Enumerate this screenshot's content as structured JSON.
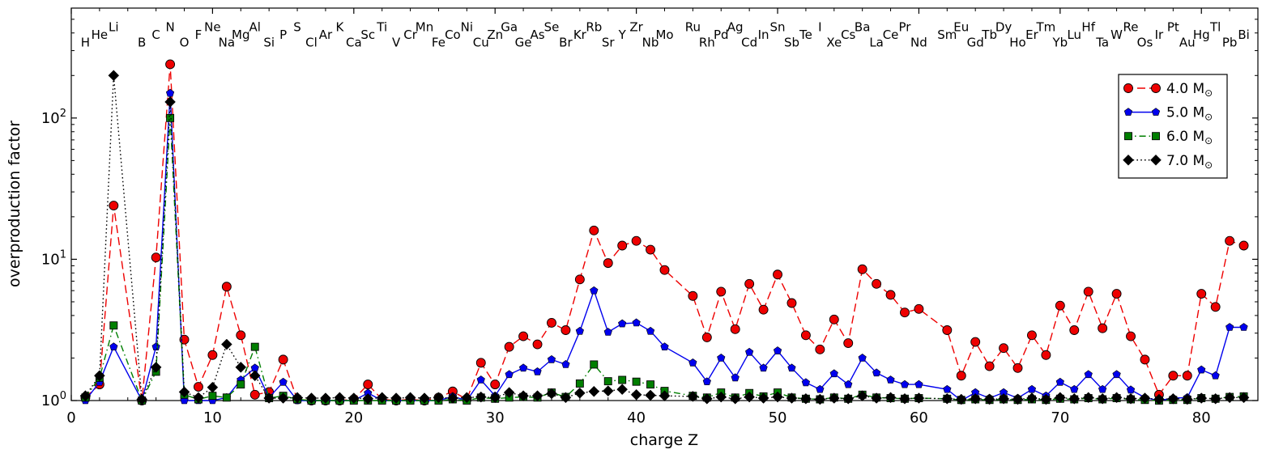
{
  "chart_data": {
    "type": "line",
    "title": "",
    "xlabel": "charge Z",
    "ylabel": "overproduction factor",
    "xscale": "linear",
    "yscale": "log",
    "xlim": [
      0,
      84
    ],
    "ylim": [
      1,
      600
    ],
    "xticks_major": [
      0,
      10,
      20,
      30,
      40,
      50,
      60,
      70,
      80
    ],
    "xtick_minor_step": 2,
    "ytick_exponents": [
      0,
      1,
      2
    ],
    "grid": false,
    "legend": {
      "position": "upper right",
      "entries": [
        "4.0 M⊙",
        "5.0 M⊙",
        "6.0 M⊙",
        "7.0 M⊙"
      ]
    },
    "elements": [
      {
        "symbol": "H",
        "Z": 1
      },
      {
        "symbol": "He",
        "Z": 2
      },
      {
        "symbol": "Li",
        "Z": 3
      },
      {
        "symbol": "B",
        "Z": 5
      },
      {
        "symbol": "C",
        "Z": 6
      },
      {
        "symbol": "N",
        "Z": 7
      },
      {
        "symbol": "O",
        "Z": 8
      },
      {
        "symbol": "F",
        "Z": 9
      },
      {
        "symbol": "Ne",
        "Z": 10
      },
      {
        "symbol": "Na",
        "Z": 11
      },
      {
        "symbol": "Mg",
        "Z": 12
      },
      {
        "symbol": "Al",
        "Z": 13
      },
      {
        "symbol": "Si",
        "Z": 14
      },
      {
        "symbol": "P",
        "Z": 15
      },
      {
        "symbol": "S",
        "Z": 16
      },
      {
        "symbol": "Cl",
        "Z": 17
      },
      {
        "symbol": "Ar",
        "Z": 18
      },
      {
        "symbol": "K",
        "Z": 19
      },
      {
        "symbol": "Ca",
        "Z": 20
      },
      {
        "symbol": "Sc",
        "Z": 21
      },
      {
        "symbol": "Ti",
        "Z": 22
      },
      {
        "symbol": "V",
        "Z": 23
      },
      {
        "symbol": "Cr",
        "Z": 24
      },
      {
        "symbol": "Mn",
        "Z": 25
      },
      {
        "symbol": "Fe",
        "Z": 26
      },
      {
        "symbol": "Co",
        "Z": 27
      },
      {
        "symbol": "Ni",
        "Z": 28
      },
      {
        "symbol": "Cu",
        "Z": 29
      },
      {
        "symbol": "Zn",
        "Z": 30
      },
      {
        "symbol": "Ga",
        "Z": 31
      },
      {
        "symbol": "Ge",
        "Z": 32
      },
      {
        "symbol": "As",
        "Z": 33
      },
      {
        "symbol": "Se",
        "Z": 34
      },
      {
        "symbol": "Br",
        "Z": 35
      },
      {
        "symbol": "Kr",
        "Z": 36
      },
      {
        "symbol": "Rb",
        "Z": 37
      },
      {
        "symbol": "Sr",
        "Z": 38
      },
      {
        "symbol": "Y",
        "Z": 39
      },
      {
        "symbol": "Zr",
        "Z": 40
      },
      {
        "symbol": "Nb",
        "Z": 41
      },
      {
        "symbol": "Mo",
        "Z": 42
      },
      {
        "symbol": "Ru",
        "Z": 44
      },
      {
        "symbol": "Rh",
        "Z": 45
      },
      {
        "symbol": "Pd",
        "Z": 46
      },
      {
        "symbol": "Ag",
        "Z": 47
      },
      {
        "symbol": "Cd",
        "Z": 48
      },
      {
        "symbol": "In",
        "Z": 49
      },
      {
        "symbol": "Sn",
        "Z": 50
      },
      {
        "symbol": "Sb",
        "Z": 51
      },
      {
        "symbol": "Te",
        "Z": 52
      },
      {
        "symbol": "I",
        "Z": 53
      },
      {
        "symbol": "Xe",
        "Z": 54
      },
      {
        "symbol": "Cs",
        "Z": 55
      },
      {
        "symbol": "Ba",
        "Z": 56
      },
      {
        "symbol": "La",
        "Z": 57
      },
      {
        "symbol": "Ce",
        "Z": 58
      },
      {
        "symbol": "Pr",
        "Z": 59
      },
      {
        "symbol": "Nd",
        "Z": 60
      },
      {
        "symbol": "Sm",
        "Z": 62
      },
      {
        "symbol": "Eu",
        "Z": 63
      },
      {
        "symbol": "Gd",
        "Z": 64
      },
      {
        "symbol": "Tb",
        "Z": 65
      },
      {
        "symbol": "Dy",
        "Z": 66
      },
      {
        "symbol": "Ho",
        "Z": 67
      },
      {
        "symbol": "Er",
        "Z": 68
      },
      {
        "symbol": "Tm",
        "Z": 69
      },
      {
        "symbol": "Yb",
        "Z": 70
      },
      {
        "symbol": "Lu",
        "Z": 71
      },
      {
        "symbol": "Hf",
        "Z": 72
      },
      {
        "symbol": "Ta",
        "Z": 73
      },
      {
        "symbol": "W",
        "Z": 74
      },
      {
        "symbol": "Re",
        "Z": 75
      },
      {
        "symbol": "Os",
        "Z": 76
      },
      {
        "symbol": "Ir",
        "Z": 77
      },
      {
        "symbol": "Pt",
        "Z": 78
      },
      {
        "symbol": "Au",
        "Z": 79
      },
      {
        "symbol": "Hg",
        "Z": 80
      },
      {
        "symbol": "Tl",
        "Z": 81
      },
      {
        "symbol": "Pb",
        "Z": 82
      },
      {
        "symbol": "Bi",
        "Z": 83
      }
    ],
    "series": [
      {
        "name": "4.0 M",
        "sub": "⊙",
        "color": "#ee0000",
        "line": "dashed",
        "marker": "circle",
        "values": [
          1.05,
          1.3,
          24,
          1.0,
          10.3,
          240,
          2.7,
          1.25,
          2.1,
          6.4,
          2.9,
          1.1,
          1.15,
          1.95,
          1.02,
          1.0,
          1.0,
          1.0,
          1.02,
          1.3,
          1.02,
          1.0,
          1.02,
          1.0,
          1.05,
          1.16,
          1.02,
          1.85,
          1.3,
          2.4,
          2.85,
          2.5,
          3.55,
          3.15,
          7.2,
          16.0,
          9.4,
          12.5,
          13.5,
          11.7,
          8.4,
          5.5,
          2.8,
          5.9,
          3.2,
          6.7,
          4.4,
          7.8,
          4.9,
          2.9,
          2.3,
          3.75,
          2.55,
          8.5,
          6.7,
          5.6,
          4.2,
          4.45,
          3.15,
          1.5,
          2.6,
          1.75,
          2.35,
          1.7,
          2.9,
          2.1,
          4.7,
          3.15,
          5.9,
          3.25,
          5.7,
          2.85,
          1.95,
          1.1,
          1.5,
          1.5,
          5.7,
          4.6,
          13.5,
          12.5
        ]
      },
      {
        "name": "5.0 M",
        "sub": "⊙",
        "color": "#0000ee",
        "line": "solid",
        "marker": "pentagon",
        "values": [
          1.0,
          1.35,
          2.4,
          1.0,
          2.4,
          150,
          1.0,
          1.0,
          1.0,
          1.05,
          1.4,
          1.7,
          1.05,
          1.35,
          1.0,
          1.0,
          1.0,
          1.0,
          1.0,
          1.13,
          1.0,
          1.0,
          1.0,
          1.0,
          1.0,
          1.07,
          1.0,
          1.4,
          1.08,
          1.53,
          1.7,
          1.6,
          1.95,
          1.8,
          3.1,
          6.0,
          3.05,
          3.5,
          3.55,
          3.1,
          2.4,
          1.85,
          1.36,
          2.0,
          1.45,
          2.2,
          1.7,
          2.25,
          1.7,
          1.34,
          1.2,
          1.55,
          1.3,
          2.0,
          1.57,
          1.4,
          1.3,
          1.3,
          1.2,
          1.0,
          1.14,
          1.04,
          1.14,
          1.04,
          1.2,
          1.08,
          1.35,
          1.2,
          1.53,
          1.2,
          1.53,
          1.19,
          1.05,
          1.0,
          1.04,
          1.05,
          1.65,
          1.5,
          3.3,
          3.3
        ]
      },
      {
        "name": "6.0 M",
        "sub": "⊙",
        "color": "#007f00",
        "line": "dashdot",
        "marker": "square",
        "values": [
          1.05,
          1.45,
          3.4,
          1.0,
          1.6,
          100,
          1.1,
          1.02,
          1.08,
          1.05,
          1.3,
          2.4,
          1.04,
          1.08,
          1.02,
          1.0,
          1.0,
          1.0,
          1.0,
          1.0,
          1.0,
          1.0,
          1.0,
          1.0,
          1.0,
          1.02,
          1.0,
          1.05,
          1.03,
          1.05,
          1.06,
          1.05,
          1.14,
          1.06,
          1.32,
          1.8,
          1.37,
          1.4,
          1.36,
          1.3,
          1.17,
          1.08,
          1.05,
          1.14,
          1.05,
          1.13,
          1.07,
          1.14,
          1.05,
          1.03,
          1.02,
          1.05,
          1.03,
          1.1,
          1.05,
          1.04,
          1.03,
          1.04,
          1.03,
          1.01,
          1.02,
          1.01,
          1.02,
          1.01,
          1.02,
          1.01,
          1.03,
          1.02,
          1.04,
          1.02,
          1.04,
          1.02,
          1.01,
          1.0,
          1.01,
          1.01,
          1.04,
          1.03,
          1.06,
          1.07
        ]
      },
      {
        "name": "7.0 M",
        "sub": "⊙",
        "color": "#000000",
        "line": "dotted",
        "marker": "diamond",
        "values": [
          1.08,
          1.5,
          200,
          1.02,
          1.72,
          130,
          1.15,
          1.05,
          1.24,
          2.5,
          1.72,
          1.5,
          1.04,
          1.04,
          1.05,
          1.04,
          1.04,
          1.05,
          1.04,
          1.03,
          1.05,
          1.04,
          1.05,
          1.04,
          1.05,
          1.04,
          1.05,
          1.06,
          1.05,
          1.14,
          1.08,
          1.08,
          1.12,
          1.05,
          1.13,
          1.16,
          1.17,
          1.2,
          1.1,
          1.09,
          1.08,
          1.07,
          1.03,
          1.06,
          1.03,
          1.06,
          1.04,
          1.06,
          1.04,
          1.03,
          1.02,
          1.04,
          1.03,
          1.08,
          1.04,
          1.05,
          1.03,
          1.04,
          1.03,
          1.02,
          1.03,
          1.02,
          1.03,
          1.02,
          1.04,
          1.02,
          1.05,
          1.03,
          1.05,
          1.03,
          1.05,
          1.03,
          1.04,
          1.02,
          1.03,
          1.02,
          1.04,
          1.03,
          1.05,
          1.05
        ]
      }
    ]
  }
}
